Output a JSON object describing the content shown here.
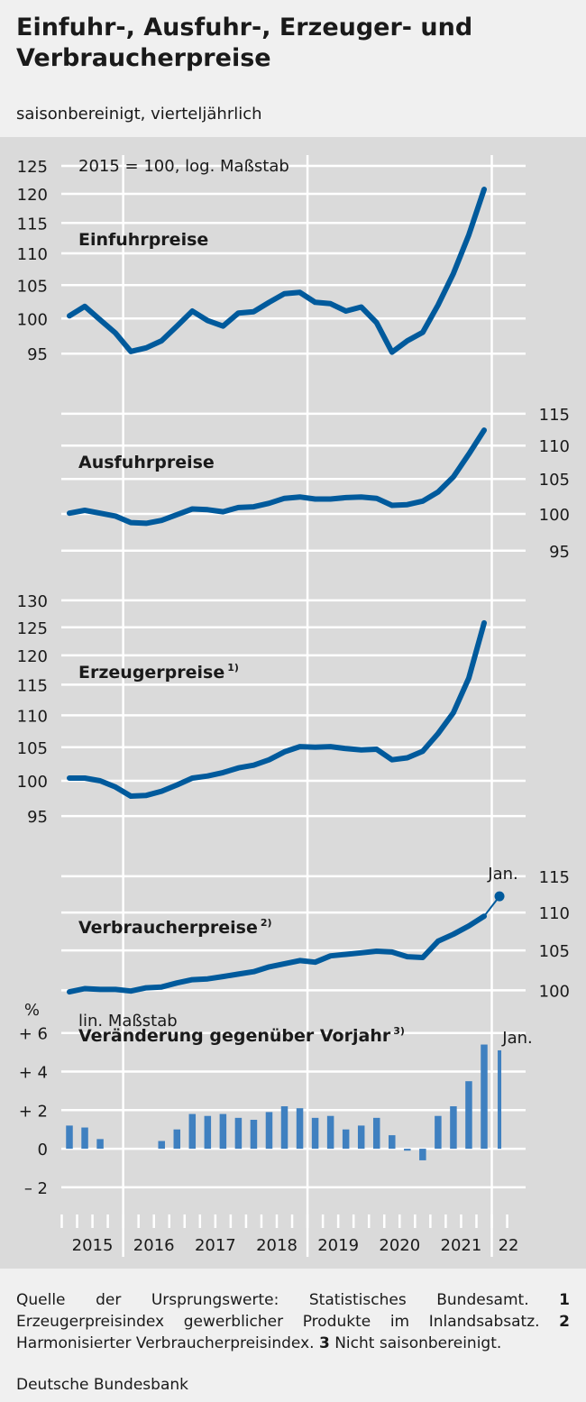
{
  "header": {
    "title": "Einfuhr-, Ausfuhr-, Erzeuger- und Verbraucherpreise",
    "subtitle": "saisonbereinigt, vierteljährlich"
  },
  "footer": {
    "source_prefix": "Quelle der Ursprungswerte: Statistisches Bundesamt.",
    "notes": [
      {
        "num": "1",
        "text": "Erzeugerpreisindex gewerblicher Produkte im Inlandsabsatz."
      },
      {
        "num": "2",
        "text": "Harmonisierter Verbraucherpreisindex."
      },
      {
        "num": "3",
        "text": "Nicht saisonbereinigt."
      }
    ],
    "publisher": "Deutsche Bundesbank"
  },
  "colors": {
    "line": "#005a9c",
    "bar": "#3f80c0",
    "gridline": "#ffffff",
    "panel_background": "#dadada",
    "page_background": "#f0f0f0"
  },
  "chart_data": [
    {
      "type": "line",
      "title": "Einfuhrpreise",
      "axis_note": "2015 = 100, log. Maßstab",
      "scale": "log",
      "y_axis_side": "left",
      "yticks": [
        95,
        100,
        105,
        110,
        115,
        120,
        125
      ],
      "ylim": [
        90.5,
        126
      ],
      "x": [
        "2015Q1",
        "2015Q2",
        "2015Q3",
        "2015Q4",
        "2016Q1",
        "2016Q2",
        "2016Q3",
        "2016Q4",
        "2017Q1",
        "2017Q2",
        "2017Q3",
        "2017Q4",
        "2018Q1",
        "2018Q2",
        "2018Q3",
        "2018Q4",
        "2019Q1",
        "2019Q2",
        "2019Q3",
        "2019Q4",
        "2020Q1",
        "2020Q2",
        "2020Q3",
        "2020Q4",
        "2021Q1",
        "2021Q2",
        "2021Q3",
        "2021Q4"
      ],
      "values": [
        100.4,
        101.8,
        99.8,
        97.9,
        95.3,
        95.8,
        96.8,
        98.9,
        101.1,
        99.7,
        98.9,
        100.8,
        101.0,
        102.4,
        103.7,
        103.9,
        102.4,
        102.2,
        101.1,
        101.7,
        99.4,
        95.2,
        96.8,
        98.0,
        102.0,
        106.8,
        113.0,
        120.8
      ]
    },
    {
      "type": "line",
      "title": "Ausfuhrpreise",
      "scale": "log",
      "y_axis_side": "right",
      "yticks": [
        95,
        100,
        105,
        110,
        115
      ],
      "ylim": [
        92.5,
        116
      ],
      "x": [
        "2015Q1",
        "2015Q2",
        "2015Q3",
        "2015Q4",
        "2016Q1",
        "2016Q2",
        "2016Q3",
        "2016Q4",
        "2017Q1",
        "2017Q2",
        "2017Q3",
        "2017Q4",
        "2018Q1",
        "2018Q2",
        "2018Q3",
        "2018Q4",
        "2019Q1",
        "2019Q2",
        "2019Q3",
        "2019Q4",
        "2020Q1",
        "2020Q2",
        "2020Q3",
        "2020Q4",
        "2021Q1",
        "2021Q2",
        "2021Q3",
        "2021Q4"
      ],
      "values": [
        100.1,
        100.5,
        100.1,
        99.7,
        98.8,
        98.7,
        99.1,
        99.9,
        100.7,
        100.6,
        100.3,
        100.9,
        101.0,
        101.5,
        102.2,
        102.4,
        102.1,
        102.1,
        102.3,
        102.4,
        102.2,
        101.2,
        101.3,
        101.8,
        103.1,
        105.3,
        108.7,
        112.4
      ]
    },
    {
      "type": "line",
      "title": "Erzeugerpreise",
      "footnote": "1)",
      "scale": "log",
      "y_axis_side": "left",
      "yticks": [
        95,
        100,
        105,
        110,
        115,
        120,
        125,
        130
      ],
      "ylim": [
        91,
        131
      ],
      "x": [
        "2015Q1",
        "2015Q2",
        "2015Q3",
        "2015Q4",
        "2016Q1",
        "2016Q2",
        "2016Q3",
        "2016Q4",
        "2017Q1",
        "2017Q2",
        "2017Q3",
        "2017Q4",
        "2018Q1",
        "2018Q2",
        "2018Q3",
        "2018Q4",
        "2019Q1",
        "2019Q2",
        "2019Q3",
        "2019Q4",
        "2020Q1",
        "2020Q2",
        "2020Q3",
        "2020Q4",
        "2021Q1",
        "2021Q2",
        "2021Q3",
        "2021Q4"
      ],
      "values": [
        100.4,
        100.4,
        100.0,
        99.1,
        97.8,
        97.9,
        98.5,
        99.4,
        100.4,
        100.7,
        101.2,
        101.9,
        102.3,
        103.1,
        104.3,
        105.1,
        105.0,
        105.1,
        104.8,
        104.6,
        104.7,
        103.1,
        103.4,
        104.4,
        107.1,
        110.4,
        116.1,
        125.8
      ]
    },
    {
      "type": "line",
      "title": "Verbraucherpreise",
      "footnote": "2)",
      "scale": "log",
      "y_axis_side": "right",
      "yticks": [
        100,
        105,
        110,
        115
      ],
      "ylim": [
        98.5,
        116
      ],
      "x": [
        "2015Q1",
        "2015Q2",
        "2015Q3",
        "2015Q4",
        "2016Q1",
        "2016Q2",
        "2016Q3",
        "2016Q4",
        "2017Q1",
        "2017Q2",
        "2017Q3",
        "2017Q4",
        "2018Q1",
        "2018Q2",
        "2018Q3",
        "2018Q4",
        "2019Q1",
        "2019Q2",
        "2019Q3",
        "2019Q4",
        "2020Q1",
        "2020Q2",
        "2020Q3",
        "2020Q4",
        "2021Q1",
        "2021Q2",
        "2021Q3",
        "2021Q4"
      ],
      "values": [
        99.8,
        100.2,
        100.1,
        100.1,
        99.9,
        100.3,
        100.4,
        100.9,
        101.3,
        101.4,
        101.7,
        102.0,
        102.3,
        102.9,
        103.3,
        103.7,
        103.5,
        104.3,
        104.5,
        104.7,
        104.9,
        104.8,
        104.2,
        104.1,
        106.2,
        107.1,
        108.2,
        109.5
      ],
      "point": {
        "label": "Jan.",
        "x": "2022-01",
        "value": 112.2
      }
    },
    {
      "type": "bar",
      "title": "Veränderung gegenüber Vorjahr",
      "footnote": "3)",
      "axis_note": "lin. Maßstab",
      "unit": "%",
      "y_axis_side": "left",
      "yticks": [
        -2,
        0,
        2,
        4,
        6
      ],
      "ytick_labels": [
        "– 2",
        "0",
        "+ 2",
        "+ 4",
        "+ 6"
      ],
      "ylim": [
        -2.8,
        6.5
      ],
      "x": [
        "2015Q1",
        "2015Q2",
        "2015Q3",
        "2015Q4",
        "2016Q1",
        "2016Q2",
        "2016Q3",
        "2016Q4",
        "2017Q1",
        "2017Q2",
        "2017Q3",
        "2017Q4",
        "2018Q1",
        "2018Q2",
        "2018Q3",
        "2018Q4",
        "2019Q1",
        "2019Q2",
        "2019Q3",
        "2019Q4",
        "2020Q1",
        "2020Q2",
        "2020Q3",
        "2020Q4",
        "2021Q1",
        "2021Q2",
        "2021Q3",
        "2021Q4"
      ],
      "values": [
        1.2,
        1.1,
        0.5,
        0.0,
        0.0,
        0.0,
        0.4,
        1.0,
        1.8,
        1.7,
        1.8,
        1.6,
        1.5,
        1.9,
        2.2,
        2.1,
        1.6,
        1.7,
        1.0,
        1.2,
        1.6,
        0.7,
        -0.1,
        -0.6,
        1.7,
        2.2,
        3.5,
        5.4
      ],
      "point": {
        "label": "Jan.",
        "x": "2022-01",
        "value": 5.1
      }
    }
  ],
  "x_axis": {
    "labels": [
      "2015",
      "2016",
      "2017",
      "2018",
      "2019",
      "2020",
      "2021",
      "22"
    ]
  }
}
